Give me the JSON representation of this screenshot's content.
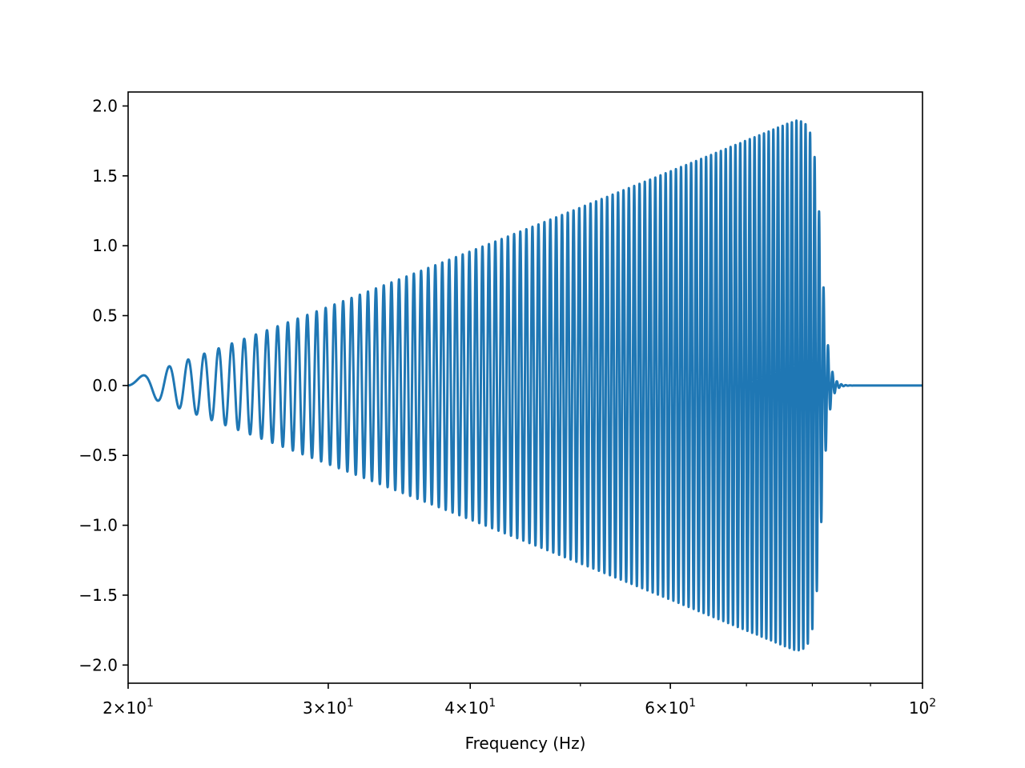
{
  "chart_data": {
    "type": "line",
    "title": "",
    "xlabel": "Frequency (Hz)",
    "ylabel": "",
    "xscale": "log",
    "xlim": [
      20,
      100
    ],
    "ylim": [
      -2.13,
      2.1
    ],
    "grid": false,
    "legend": "none",
    "line_color": "#1f77b4",
    "x_ticks_major": [
      {
        "value": 20,
        "mantissa": "2",
        "base": "10",
        "exp": "1"
      },
      {
        "value": 30,
        "mantissa": "3",
        "base": "10",
        "exp": "1"
      },
      {
        "value": 40,
        "mantissa": "4",
        "base": "10",
        "exp": "1"
      },
      {
        "value": 60,
        "mantissa": "6",
        "base": "10",
        "exp": "1"
      },
      {
        "value": 100,
        "mantissa": "",
        "base": "10",
        "exp": "2"
      }
    ],
    "x_ticks_minor": [
      50,
      70,
      80,
      90
    ],
    "y_ticks": [
      {
        "value": 2.0,
        "label": "2.0"
      },
      {
        "value": 1.5,
        "label": "1.5"
      },
      {
        "value": 1.0,
        "label": "1.0"
      },
      {
        "value": 0.5,
        "label": "0.5"
      },
      {
        "value": 0.0,
        "label": "0.0"
      },
      {
        "value": -0.5,
        "label": "−0.5"
      },
      {
        "value": -1.0,
        "label": "−1.0"
      },
      {
        "value": -1.5,
        "label": "−1.5"
      },
      {
        "value": -2.0,
        "label": "−2.0"
      }
    ],
    "series": [
      {
        "x_start": 20,
        "x_end": 100,
        "phase_start_frequency": 20,
        "phase_end_frequency": 78,
        "envelope_start_frequency": 20,
        "envelope_end_frequency": 77.5,
        "envelope_peak": 1.9,
        "cutoff_frequency": 81.5,
        "cycles": 95
      }
    ]
  }
}
